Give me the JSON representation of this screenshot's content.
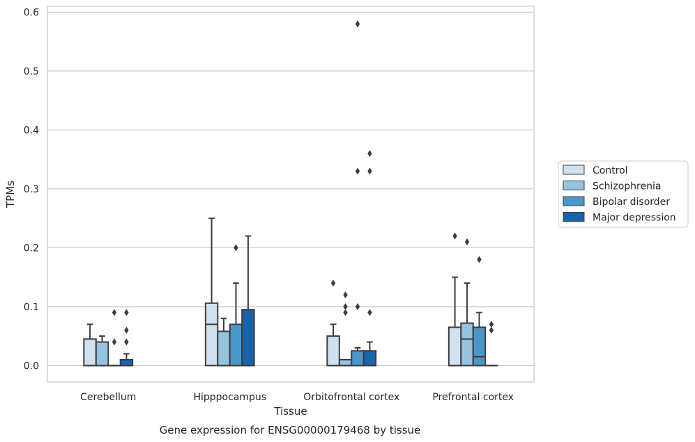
{
  "chart_data": {
    "type": "boxplot",
    "title": "",
    "caption": "Gene expression for ENSG00000179468 by tissue",
    "xlabel": "Tissue",
    "ylabel": "TPMs",
    "ylim": [
      -0.028,
      0.61
    ],
    "yticks": [
      0.0,
      0.1,
      0.2,
      0.3,
      0.4,
      0.5,
      0.6
    ],
    "ytick_labels": [
      "0.0",
      "0.1",
      "0.2",
      "0.3",
      "0.4",
      "0.5",
      "0.6"
    ],
    "grid": "horizontal",
    "legend_position": "right",
    "categories": [
      "Cerebellum",
      "Hipppocampus",
      "Orbitofrontal cortex",
      "Prefrontal cortex"
    ],
    "series": [
      {
        "name": "Control",
        "color": "#d0e1f2",
        "boxes": [
          {
            "q1": 0.0,
            "median": 0.0,
            "q3": 0.045,
            "whisker_low": 0.0,
            "whisker_high": 0.07,
            "outliers": []
          },
          {
            "q1": 0.0,
            "median": 0.07,
            "q3": 0.106,
            "whisker_low": 0.0,
            "whisker_high": 0.25,
            "outliers": []
          },
          {
            "q1": 0.0,
            "median": 0.0,
            "q3": 0.05,
            "whisker_low": 0.0,
            "whisker_high": 0.07,
            "outliers": [
              0.14
            ]
          },
          {
            "q1": 0.0,
            "median": 0.0,
            "q3": 0.065,
            "whisker_low": 0.0,
            "whisker_high": 0.15,
            "outliers": [
              0.22
            ]
          }
        ]
      },
      {
        "name": "Schizophrenia",
        "color": "#94c4df",
        "boxes": [
          {
            "q1": 0.0,
            "median": 0.0,
            "q3": 0.04,
            "whisker_low": 0.0,
            "whisker_high": 0.05,
            "outliers": []
          },
          {
            "q1": 0.0,
            "median": 0.0,
            "q3": 0.058,
            "whisker_low": 0.0,
            "whisker_high": 0.08,
            "outliers": []
          },
          {
            "q1": 0.0,
            "median": 0.0,
            "q3": 0.01,
            "whisker_low": 0.0,
            "whisker_high": 0.01,
            "outliers": [
              0.09,
              0.1,
              0.12
            ]
          },
          {
            "q1": 0.0,
            "median": 0.045,
            "q3": 0.072,
            "whisker_low": 0.0,
            "whisker_high": 0.14,
            "outliers": [
              0.21
            ]
          }
        ]
      },
      {
        "name": "Bipolar disorder",
        "color": "#4a98c9",
        "boxes": [
          {
            "q1": 0.0,
            "median": 0.0,
            "q3": 0.0,
            "whisker_low": 0.0,
            "whisker_high": 0.0,
            "outliers": [
              0.04,
              0.09
            ]
          },
          {
            "q1": 0.0,
            "median": 0.0,
            "q3": 0.07,
            "whisker_low": 0.0,
            "whisker_high": 0.14,
            "outliers": [
              0.2
            ]
          },
          {
            "q1": 0.0,
            "median": 0.0,
            "q3": 0.025,
            "whisker_low": 0.0,
            "whisker_high": 0.03,
            "outliers": [
              0.1,
              0.33,
              0.58
            ]
          },
          {
            "q1": 0.0,
            "median": 0.015,
            "q3": 0.065,
            "whisker_low": 0.0,
            "whisker_high": 0.09,
            "outliers": [
              0.18
            ]
          }
        ]
      },
      {
        "name": "Major depression",
        "color": "#1764ab",
        "boxes": [
          {
            "q1": 0.0,
            "median": 0.0,
            "q3": 0.01,
            "whisker_low": 0.0,
            "whisker_high": 0.02,
            "outliers": [
              0.04,
              0.06,
              0.09
            ]
          },
          {
            "q1": 0.0,
            "median": 0.0,
            "q3": 0.095,
            "whisker_low": 0.0,
            "whisker_high": 0.22,
            "outliers": []
          },
          {
            "q1": 0.0,
            "median": 0.0,
            "q3": 0.025,
            "whisker_low": 0.0,
            "whisker_high": 0.04,
            "outliers": [
              0.09,
              0.33,
              0.36
            ]
          },
          {
            "q1": 0.0,
            "median": 0.0,
            "q3": 0.0,
            "whisker_low": 0.0,
            "whisker_high": 0.0,
            "outliers": [
              0.06,
              0.07
            ]
          }
        ]
      }
    ]
  }
}
